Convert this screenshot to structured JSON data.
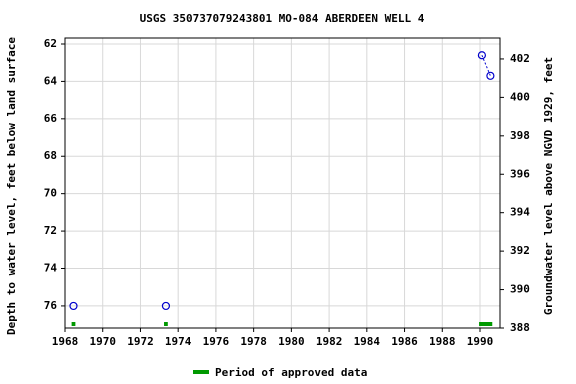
{
  "chart_data": {
    "type": "line",
    "title": "USGS 350737079243801 MO-084 ABERDEEN WELL 4",
    "ylabel": "Depth to water level, feet below land surface",
    "y2label": "Groundwater level above NGVD 1929, feet",
    "xlim": [
      1968,
      1991.06
    ],
    "xticks": [
      1968,
      1970,
      1972,
      1974,
      1976,
      1978,
      1980,
      1982,
      1984,
      1986,
      1988,
      1990
    ],
    "ylim": [
      61.68,
      77.18
    ],
    "y_inverted": true,
    "yticks": [
      62,
      64,
      66,
      68,
      70,
      72,
      74,
      76
    ],
    "y2lim": [
      388,
      403.09
    ],
    "y2ticks": [
      388,
      390,
      392,
      394,
      396,
      398,
      400,
      402
    ],
    "grid": true,
    "series": [
      {
        "color": "#0000cc",
        "x": [
          1968.45
        ],
        "values": [
          76
        ]
      },
      {
        "color": "#0000cc",
        "x": [
          1973.35
        ],
        "values": [
          76
        ]
      },
      {
        "color": "#0000cc",
        "x": [
          1990.1,
          1990.55
        ],
        "values": [
          62.6,
          63.7
        ]
      }
    ],
    "approved": {
      "name": "Period of approved data",
      "color": "#009900",
      "periods": [
        [
          1968.35,
          1968.55
        ],
        [
          1973.25,
          1973.45
        ],
        [
          1989.95,
          1990.65
        ]
      ]
    }
  }
}
